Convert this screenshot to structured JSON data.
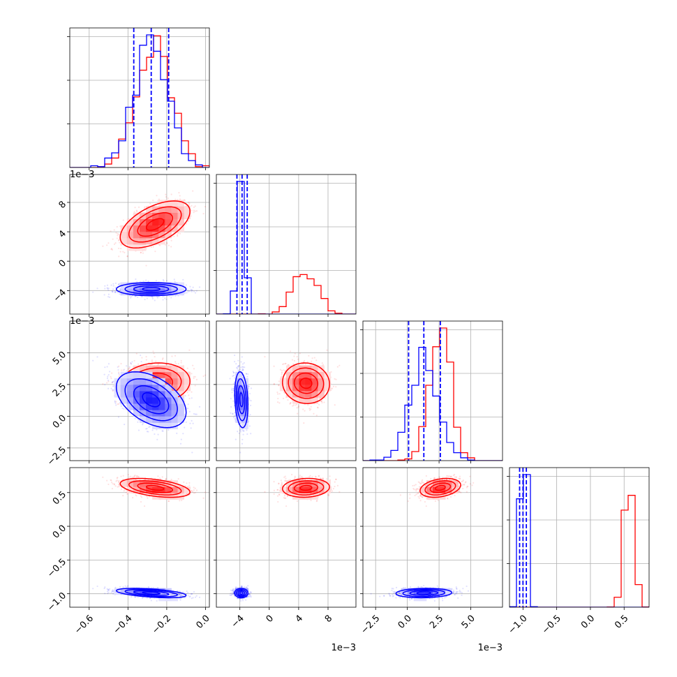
{
  "chart_data": {
    "type": "corner",
    "parameters": [
      {
        "id": "p0",
        "range": [
          -0.7,
          0.02
        ],
        "ticks": [
          -0.6,
          -0.4,
          -0.2,
          0.0
        ],
        "tick_labels": [
          "−0.6",
          "−0.4",
          "−0.2",
          "0.0"
        ],
        "offset": ""
      },
      {
        "id": "p1",
        "range": [
          -7.2,
          11.8
        ],
        "ticks": [
          -4,
          0,
          4,
          8
        ],
        "tick_labels": [
          "−4",
          "0",
          "4",
          "8"
        ],
        "offset": "1e−3"
      },
      {
        "id": "p2",
        "range": [
          -3.5,
          7.5
        ],
        "ticks": [
          -2.5,
          0.0,
          2.5,
          5.0
        ],
        "tick_labels": [
          "−2.5",
          "0.0",
          "2.5",
          "5.0"
        ],
        "offset": "1e−3"
      },
      {
        "id": "p3",
        "range": [
          -1.2,
          0.87
        ],
        "ticks": [
          -1.0,
          -0.5,
          0.0,
          0.5
        ],
        "tick_labels": [
          "−1.0",
          "−0.5",
          "0.0",
          "0.5"
        ],
        "offset": ""
      }
    ],
    "series": [
      {
        "color": "#ff0000",
        "mean": [
          -0.26,
          5.0,
          2.6,
          0.57
        ],
        "std": [
          0.09,
          1.6,
          0.8,
          0.07
        ],
        "corr": [
          [
            0,
            1,
            0.55
          ],
          [
            0,
            2,
            0.1
          ],
          [
            0,
            3,
            -0.45
          ],
          [
            1,
            2,
            -0.05
          ],
          [
            1,
            3,
            0.1
          ],
          [
            2,
            3,
            0.3
          ]
        ]
      },
      {
        "color": "#0000ff",
        "mean": [
          -0.28,
          -3.8,
          1.3,
          -0.99
        ],
        "std": [
          0.09,
          0.45,
          1.1,
          0.035
        ],
        "corr": [
          [
            0,
            1,
            0.0
          ],
          [
            0,
            2,
            -0.45
          ],
          [
            0,
            3,
            -0.5
          ],
          [
            1,
            2,
            -0.2
          ],
          [
            1,
            3,
            0.0
          ],
          [
            2,
            3,
            0.1
          ]
        ]
      }
    ],
    "quantile_lines": {
      "color": "#0000ff",
      "values": [
        [
          -0.37,
          -0.28,
          -0.19
        ],
        [
          -4.4,
          -3.7,
          -3.0
        ],
        [
          0.1,
          1.3,
          2.6
        ],
        [
          -1.05,
          -1.0,
          -0.95
        ]
      ]
    },
    "grid": true,
    "legend": "none",
    "title": ""
  }
}
